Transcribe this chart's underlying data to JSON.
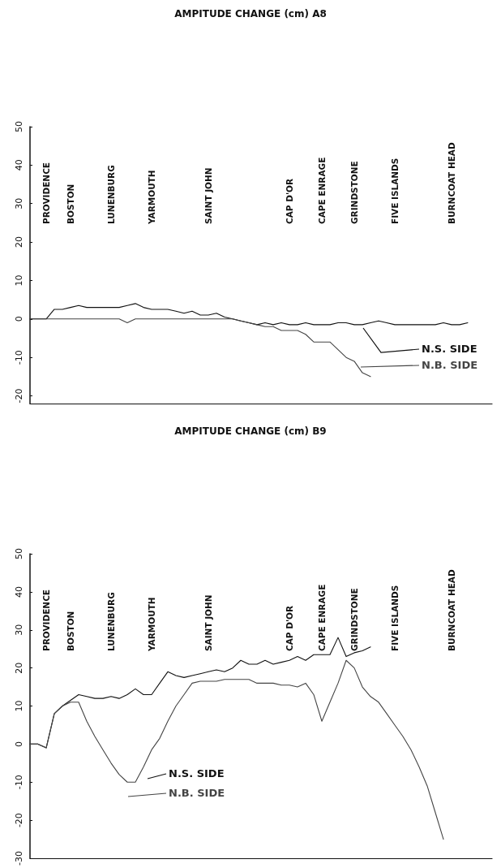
{
  "chart_data": [
    {
      "type": "line",
      "title": "AMPITUDE CHANGE (cm) A8",
      "categories": [
        null,
        null,
        "PROVIDENCE",
        null,
        null,
        "BOSTON",
        null,
        null,
        null,
        null,
        "LUNENBURG",
        null,
        null,
        null,
        null,
        "YARMOUTH",
        null,
        null,
        null,
        null,
        null,
        null,
        "SAINT JOHN",
        null,
        null,
        null,
        null,
        null,
        null,
        null,
        null,
        null,
        "CAP D'OR",
        null,
        null,
        null,
        "CAPE ENRAGE",
        null,
        null,
        null,
        "GRINDSTONE",
        null,
        null,
        null,
        null,
        "FIVE ISLANDS",
        null,
        null,
        null,
        null,
        null,
        null,
        "BURNCOAT HEAD",
        null,
        null,
        null,
        null,
        null
      ],
      "series": [
        {
          "name": "N.S. SIDE",
          "color": "#111111",
          "values": [
            0,
            0,
            0,
            2.5,
            2.5,
            3,
            3.5,
            3,
            3,
            3,
            3,
            3,
            3.5,
            4,
            3,
            2.5,
            2.5,
            2.5,
            2,
            1.5,
            2,
            1,
            1,
            1.5,
            0.5,
            0,
            -0.5,
            -1,
            -1.5,
            -1,
            -1.5,
            -1,
            -1.5,
            -1.5,
            -1,
            -1.5,
            -1.5,
            -1.5,
            -1,
            -1,
            -1.5,
            -1.5,
            -1,
            -0.5,
            -1,
            -1.5,
            -1.5,
            -1.5,
            -1.5,
            -1.5,
            -1.5,
            -1,
            -1.5,
            -1.5,
            -1,
            null,
            null,
            null
          ]
        },
        {
          "name": "N.B. SIDE",
          "color": "#444444",
          "values": [
            0,
            0,
            0,
            0,
            0,
            0,
            0,
            0,
            0,
            0,
            0,
            0,
            -1,
            0,
            0,
            0,
            0,
            0,
            0,
            0,
            0,
            0,
            0,
            0,
            0,
            0,
            -0.5,
            -1,
            -1.5,
            -2,
            -2,
            -3,
            -3,
            -3,
            -4,
            -6,
            -6,
            -6,
            -8,
            -10,
            -11,
            -14,
            -15,
            null,
            null,
            null,
            null,
            null,
            null,
            null,
            null,
            null,
            null,
            null,
            null,
            null,
            null,
            null
          ]
        }
      ],
      "ylim": [
        -22,
        50
      ],
      "yticks": [
        -20,
        -10,
        0,
        10,
        20,
        30,
        40,
        50
      ],
      "grid": false,
      "legend": "right"
    },
    {
      "type": "line",
      "title": "AMPITUDE CHANGE (cm) B9",
      "categories": [
        null,
        null,
        "PROVIDENCE",
        null,
        null,
        "BOSTON",
        null,
        null,
        null,
        null,
        "LUNENBURG",
        null,
        null,
        null,
        null,
        "YARMOUTH",
        null,
        null,
        null,
        null,
        null,
        null,
        "SAINT JOHN",
        null,
        null,
        null,
        null,
        null,
        null,
        null,
        null,
        null,
        "CAP D'OR",
        null,
        null,
        null,
        "CAPE ENRAGE",
        null,
        null,
        null,
        "GRINDSTONE",
        null,
        null,
        null,
        null,
        "FIVE ISLANDS",
        null,
        null,
        null,
        null,
        null,
        null,
        "BURNCOAT HEAD",
        null,
        null,
        null,
        null,
        null
      ],
      "series": [
        {
          "name": "N.S. SIDE",
          "color": "#111111",
          "values": [
            0,
            0,
            -1,
            8,
            10,
            11.5,
            13,
            12.5,
            12,
            12,
            12.5,
            12,
            13,
            14.5,
            13,
            13,
            16,
            19,
            18,
            17.5,
            18,
            18.5,
            19,
            19.5,
            19,
            20,
            22,
            21,
            21,
            22,
            21,
            21.5,
            22,
            23,
            22,
            23.5,
            23.5,
            23.5,
            28,
            23,
            24,
            24.5,
            25.5,
            null,
            null,
            null,
            null,
            null,
            null,
            null,
            null,
            null,
            null,
            null,
            null,
            null,
            null,
            null
          ]
        },
        {
          "name": "N.B. SIDE",
          "color": "#444444",
          "values": [
            0,
            0,
            -1,
            8,
            10,
            11,
            11,
            6,
            2,
            -1.5,
            -5,
            -8,
            -10,
            -10,
            -6,
            -1.5,
            1.5,
            6,
            10,
            13,
            16,
            16.5,
            16.5,
            16.5,
            17,
            17,
            17,
            17,
            16,
            16,
            16,
            15.5,
            15.5,
            15,
            16,
            13,
            6,
            11,
            16,
            22,
            20,
            15,
            12.5,
            11,
            8,
            5,
            2,
            -1.5,
            -6,
            -11,
            -18,
            -25,
            null,
            null,
            null,
            null,
            null,
            null
          ]
        }
      ],
      "ylim": [
        -30,
        50
      ],
      "yticks": [
        -30,
        -20,
        -10,
        0,
        10,
        20,
        30,
        40,
        50
      ],
      "grid": false,
      "legend": "bottom left"
    }
  ]
}
